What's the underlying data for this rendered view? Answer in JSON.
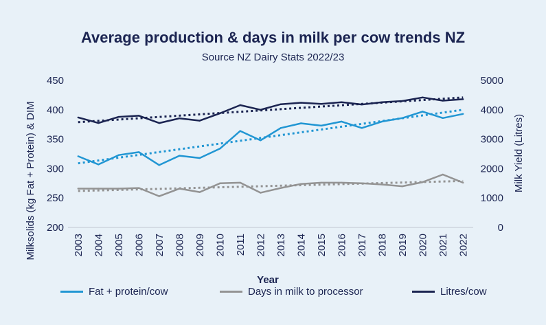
{
  "chart_data": {
    "type": "line",
    "title": "Average production & days in milk per cow trends NZ",
    "subtitle": "Source NZ Dairy Stats 2022/23",
    "xlabel": "Year",
    "ylabel_left": "Milksolids (kg Fat + Protein) & DIM",
    "ylabel_right": "Milk Yield (Litres)",
    "ylim_left": [
      200,
      450
    ],
    "ylim_right": [
      0,
      5000
    ],
    "yticks_left": [
      "450",
      "400",
      "350",
      "300",
      "250",
      "200"
    ],
    "yticks_right": [
      "5000",
      "4000",
      "3000",
      "2000",
      "1000",
      "0"
    ],
    "categories": [
      "2003",
      "2004",
      "2005",
      "2006",
      "2007",
      "2008",
      "2009",
      "2010",
      "2011",
      "2012",
      "2013",
      "2014",
      "2015",
      "2016",
      "2017",
      "2018",
      "2019",
      "2020",
      "2021",
      "2022"
    ],
    "series": [
      {
        "name": "Fat + protein/cow",
        "axis": "left",
        "color": "#2196d3",
        "values": [
          321,
          307,
          323,
          328,
          306,
          322,
          318,
          334,
          364,
          348,
          369,
          377,
          373,
          380,
          369,
          380,
          386,
          397,
          386,
          393
        ],
        "trendline": [
          309,
          400
        ]
      },
      {
        "name": "Days in milk to processor",
        "axis": "left",
        "color": "#939393",
        "values": [
          266,
          266,
          266,
          267,
          253,
          266,
          260,
          275,
          276,
          259,
          267,
          274,
          276,
          276,
          275,
          273,
          270,
          277,
          290,
          276
        ],
        "trendline": [
          262,
          279
        ]
      },
      {
        "name": "Litres/cow",
        "axis": "right",
        "color": "#1b2451",
        "values": [
          3740,
          3550,
          3760,
          3800,
          3550,
          3710,
          3630,
          3880,
          4160,
          4000,
          4190,
          4240,
          4200,
          4260,
          4180,
          4260,
          4300,
          4420,
          4310,
          4360
        ],
        "trendline": [
          3580,
          4420
        ]
      }
    ],
    "legend": [
      {
        "label": "Fat + protein/cow",
        "color": "#2196d3"
      },
      {
        "label": "Days in milk to processor",
        "color": "#939393"
      },
      {
        "label": "Litres/cow",
        "color": "#1b2451"
      }
    ]
  }
}
